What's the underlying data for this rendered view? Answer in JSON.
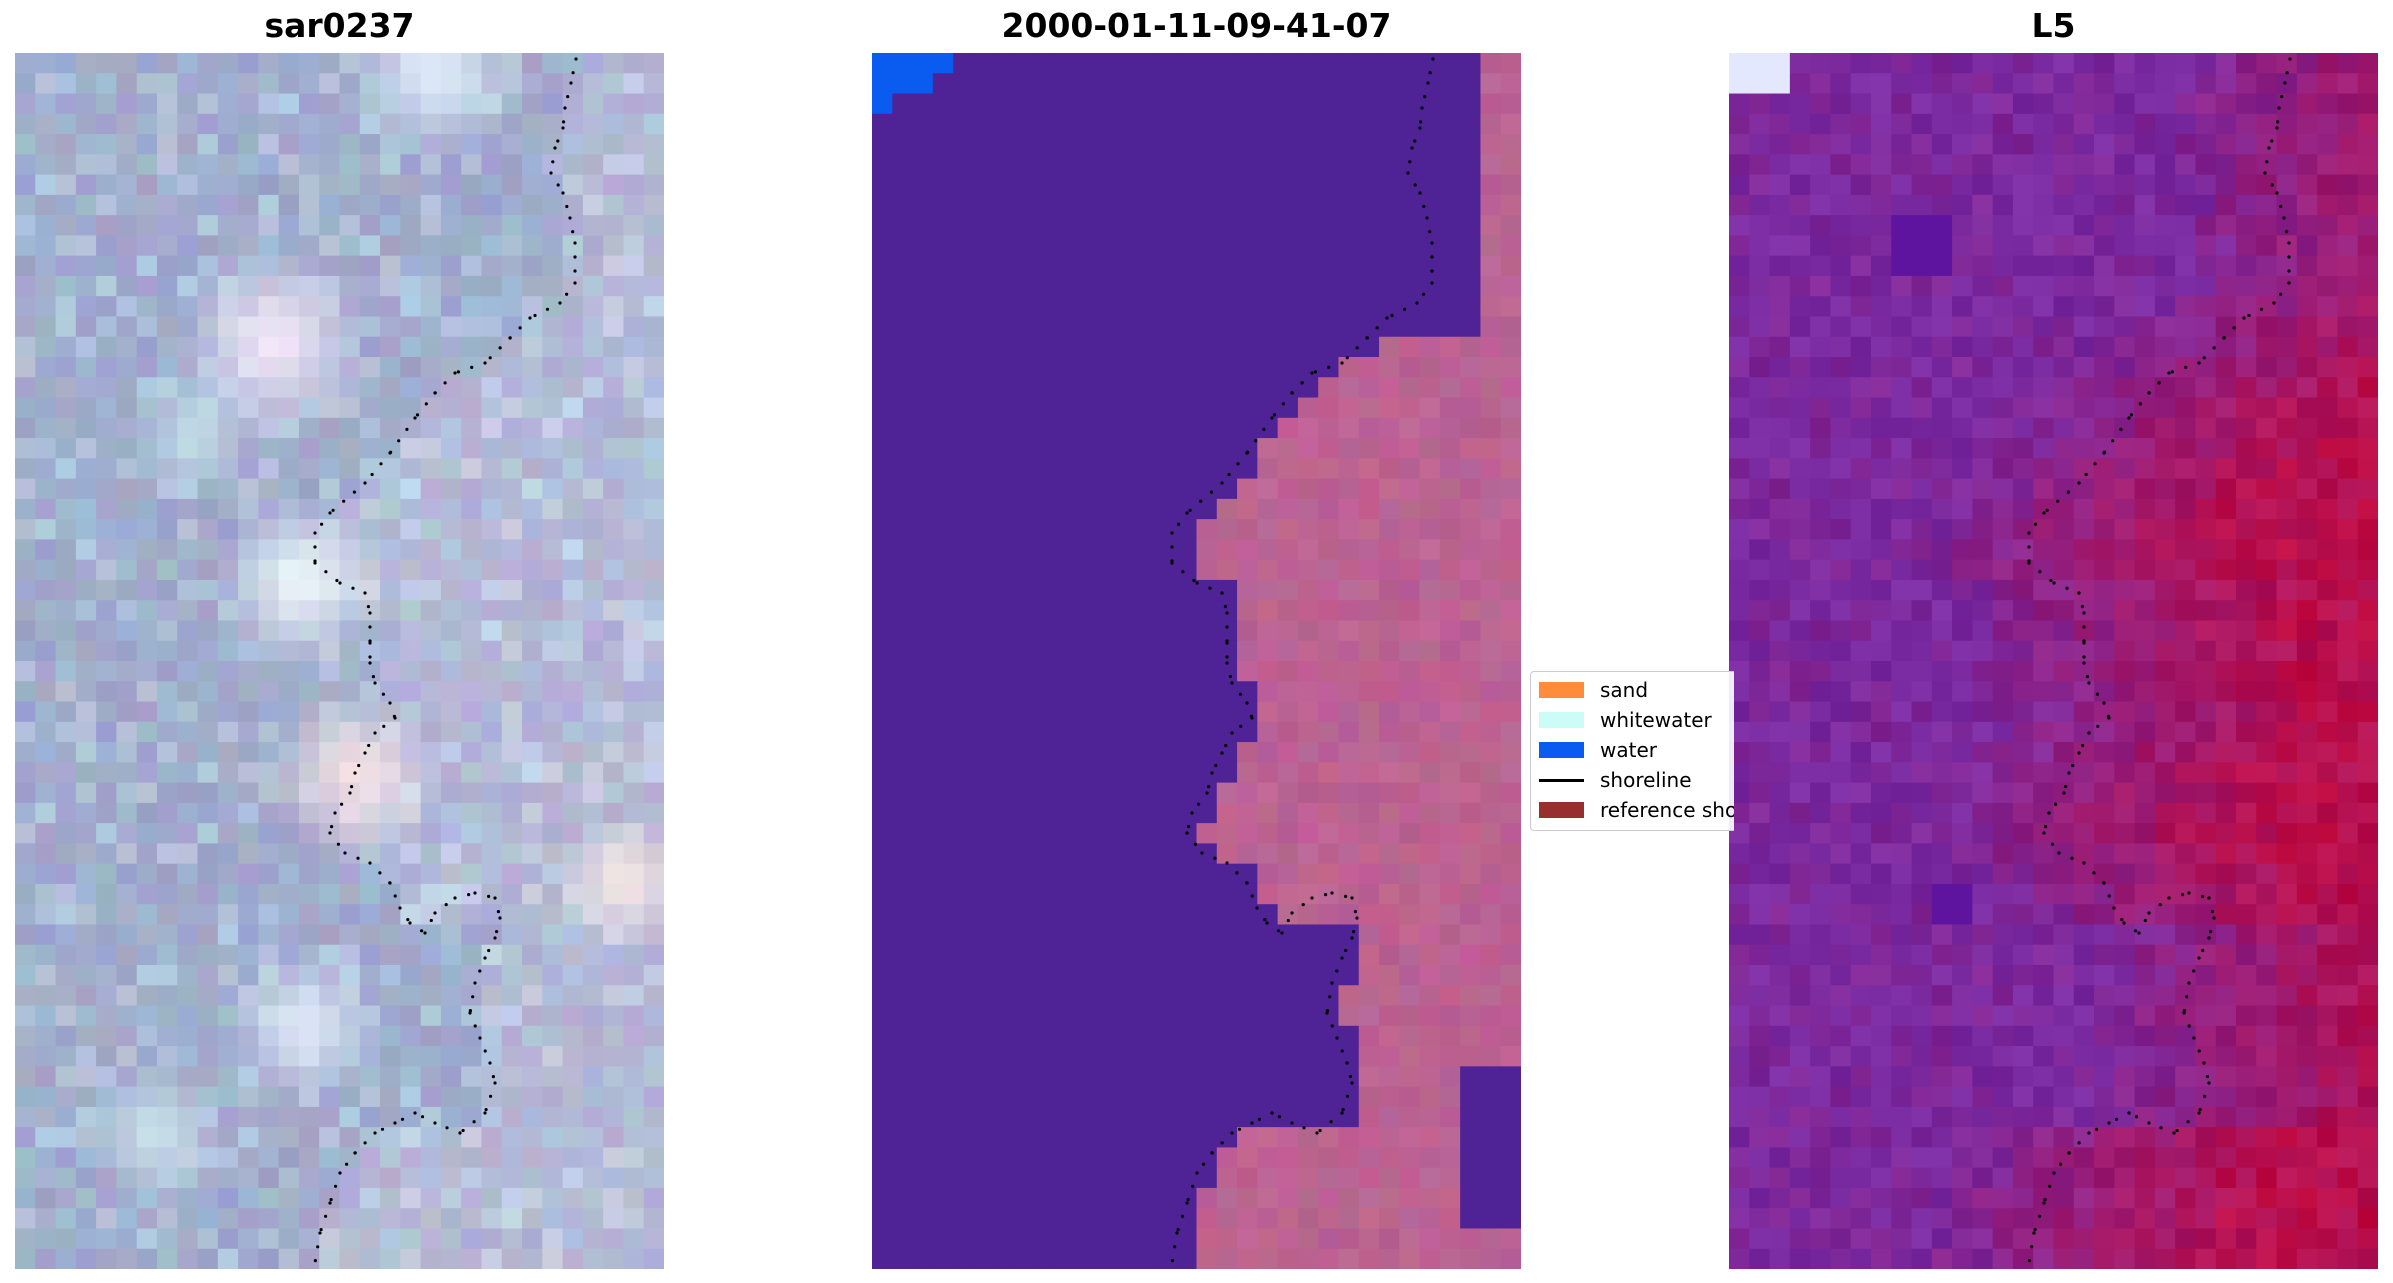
{
  "panels": [
    {
      "id": "rgb",
      "title": "sar0237"
    },
    {
      "id": "classified",
      "title": "2000-01-11-09-41-07"
    },
    {
      "id": "index",
      "title": "L5"
    }
  ],
  "legend": {
    "items": [
      {
        "label": "sand",
        "kind": "patch",
        "color": "#ff8c3a"
      },
      {
        "label": "whitewater",
        "kind": "patch",
        "color": "#ccfcf7"
      },
      {
        "label": "water",
        "kind": "patch",
        "color": "#0a5cf0"
      },
      {
        "label": "shoreline",
        "kind": "line",
        "color": "#000000"
      },
      {
        "label": "reference shoreline",
        "kind": "patch",
        "color": "#96302f"
      }
    ]
  },
  "colors": {
    "rgb_base": "#a3a7c8",
    "classified_water_overlay": "#4f2296",
    "classified_water_class": "#0a5cf0",
    "classified_land": "#bb6392",
    "index_low": "#7a2aa0",
    "index_high": "#c20a3e",
    "shoreline_points": "#000000"
  }
}
